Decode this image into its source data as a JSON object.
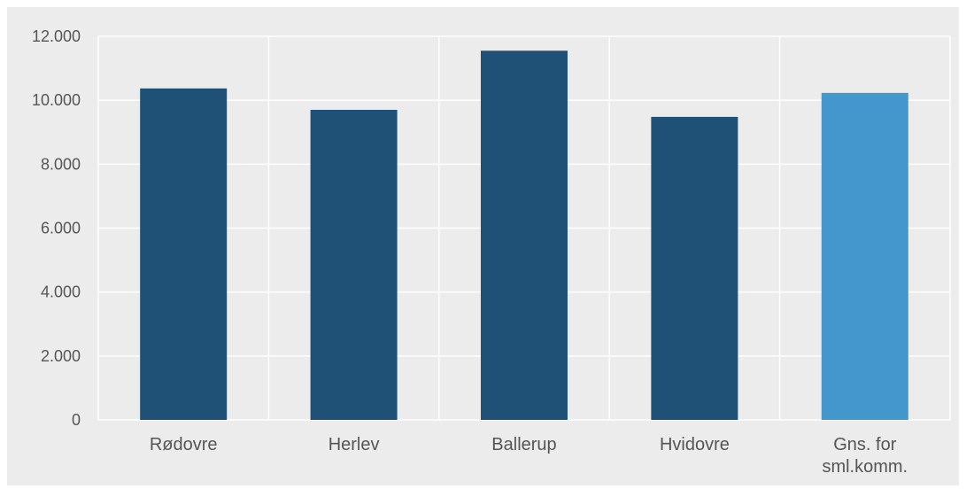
{
  "chart_data": {
    "type": "bar",
    "title": "",
    "xlabel": "",
    "ylabel": "",
    "categories": [
      "Rødovre",
      "Herlev",
      "Ballerup",
      "Hvidovre",
      "Gns. for sml.komm."
    ],
    "category_lines": [
      [
        "Rødovre"
      ],
      [
        "Herlev"
      ],
      [
        "Ballerup"
      ],
      [
        "Hvidovre"
      ],
      [
        "Gns. for",
        "sml.komm."
      ]
    ],
    "values": [
      10370,
      9700,
      11550,
      9480,
      10230
    ],
    "bar_colors": [
      "#1e5175",
      "#1e5175",
      "#1e5175",
      "#1e5175",
      "#4497cd"
    ],
    "ylim": [
      0,
      12000
    ],
    "yticks": [
      0,
      2000,
      4000,
      6000,
      8000,
      10000,
      12000
    ],
    "ytick_labels": [
      "0",
      "2.000",
      "4.000",
      "6.000",
      "8.000",
      "10.000",
      "12.000"
    ],
    "grid": true,
    "grid_color": "#ffffff",
    "background_color": "#ececec",
    "legend": "none"
  }
}
